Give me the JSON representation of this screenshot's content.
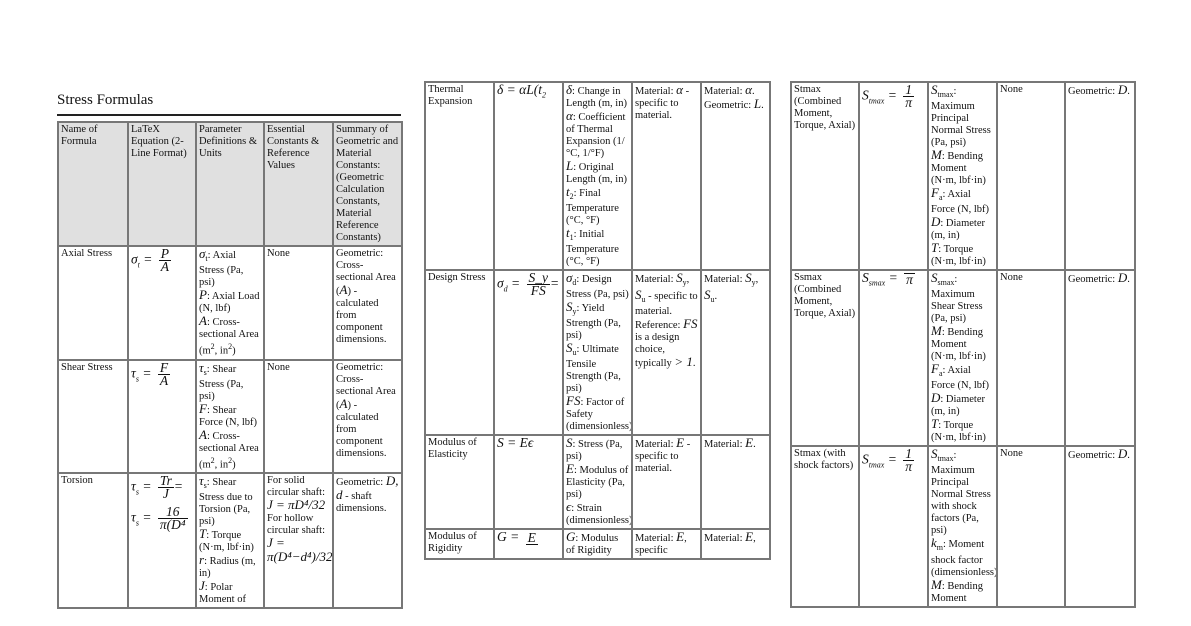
{
  "page": {
    "title": "Stress Formulas"
  },
  "headers": [
    "Name of Formula",
    "LaTeX Equation (2-Line Format)",
    "Parameter Definitions & Units",
    "Essential Constants & Reference Values",
    "Summary of Geometric and Material Constants: (Geometric Calculation Constants, Material Reference Constants)"
  ],
  "tables": [
    {
      "rows": [
        {
          "name": "Axial Stress",
          "eq": [
            {
              "lhs": "σ",
              "sub": "t",
              "num": "P",
              "den": "A",
              "tail": ""
            }
          ],
          "params": [
            [
              {
                "m": "σ",
                "sub": "t"
              },
              {
                "t": ": Axial Stress (Pa, psi)"
              }
            ],
            [
              {
                "m": "P"
              },
              {
                "t": ": Axial Load (N, lbf)"
              }
            ],
            [
              {
                "m": "A"
              },
              {
                "t": ": Cross-sectional Area (m"
              },
              {
                "sup": "2"
              },
              {
                "t": ", in"
              },
              {
                "sup": "2"
              },
              {
                "t": ")"
              }
            ]
          ],
          "constants": [
            [
              {
                "t": "None"
              }
            ]
          ],
          "summary": [
            [
              {
                "t": "Geometric: Cross-sectional Area ("
              },
              {
                "m": "A"
              },
              {
                "t": ") - calculated from component dimensions."
              }
            ]
          ]
        },
        {
          "name": "Shear Stress",
          "eq": [
            {
              "lhs": "τ",
              "sub": "s",
              "num": "F",
              "den": "A",
              "tail": ""
            }
          ],
          "params": [
            [
              {
                "m": "τ",
                "sub": "s"
              },
              {
                "t": ": Shear Stress (Pa, psi)"
              }
            ],
            [
              {
                "m": "F"
              },
              {
                "t": ": Shear Force (N, lbf)"
              }
            ],
            [
              {
                "m": "A"
              },
              {
                "t": ": Cross-sectional Area (m"
              },
              {
                "sup": "2"
              },
              {
                "t": ", in"
              },
              {
                "sup": "2"
              },
              {
                "t": ")"
              }
            ]
          ],
          "constants": [
            [
              {
                "t": "None"
              }
            ]
          ],
          "summary": [
            [
              {
                "t": "Geometric: Cross-sectional Area ("
              },
              {
                "m": "A"
              },
              {
                "t": ") - calculated from component dimensions."
              }
            ]
          ]
        },
        {
          "name": "Torsion",
          "eq": [
            {
              "lhs": "τ",
              "sub": "s",
              "num": "Tr",
              "den": "J",
              "tail": "="
            },
            {
              "lhs": "τ",
              "sub": "s",
              "num": "16",
              "den": "π(D⁴",
              "tail": ""
            }
          ],
          "params": [
            [
              {
                "m": "τ",
                "sub": "s"
              },
              {
                "t": ": Shear Stress due to Torsion (Pa, psi)"
              }
            ],
            [
              {
                "m": "T"
              },
              {
                "t": ": Torque (N·m, lbf·in)"
              }
            ],
            [
              {
                "m": "r"
              },
              {
                "t": ": Radius (m, in)"
              }
            ],
            [
              {
                "m": "J"
              },
              {
                "t": ": Polar Moment of"
              }
            ]
          ],
          "constants": [
            [
              {
                "t": "For solid circular shaft: "
              },
              {
                "m": "J = πD⁴/32"
              }
            ],
            [
              {
                "t": "For hollow circular shaft: "
              },
              {
                "m": "J = π(D⁴−d⁴)/32"
              }
            ]
          ],
          "summary": [
            [
              {
                "t": "Geometric: "
              },
              {
                "m": "D, d"
              },
              {
                "t": " - shaft dimensions."
              }
            ]
          ]
        }
      ]
    },
    {
      "rows": [
        {
          "name": "Thermal Expansion",
          "eq": [
            {
              "lhs": "δ = αL(t",
              "sub": "2",
              "num": "",
              "den": "",
              "tail": ""
            }
          ],
          "params": [
            [
              {
                "m": "δ"
              },
              {
                "t": ": Change in Length (m, in)"
              }
            ],
            [
              {
                "m": "α"
              },
              {
                "t": ": Coefficient of Thermal Expansion (1/°C, 1/°F)"
              }
            ],
            [
              {
                "m": "L"
              },
              {
                "t": ": Original Length (m, in)"
              }
            ],
            [
              {
                "m": "t",
                "sub": "2"
              },
              {
                "t": ": Final Temperature (°C, °F)"
              }
            ],
            [
              {
                "m": "t",
                "sub": "1"
              },
              {
                "t": ": Initial Temperature (°C, °F)"
              }
            ]
          ],
          "constants": [
            [
              {
                "t": "Material: "
              },
              {
                "m": "α"
              },
              {
                "t": " - specific to material."
              }
            ]
          ],
          "summary": [
            [
              {
                "t": "Material: "
              },
              {
                "m": "α"
              },
              {
                "t": ". Geometric: "
              },
              {
                "m": "L"
              },
              {
                "t": "."
              }
            ]
          ]
        },
        {
          "name": "Design Stress",
          "eq": [
            {
              "lhs": "σ",
              "sub": "d",
              "num": "S_y",
              "den": "FS",
              "tail": "="
            }
          ],
          "params": [
            [
              {
                "m": "σ",
                "sub": "d"
              },
              {
                "t": ": Design Stress (Pa, psi)"
              }
            ],
            [
              {
                "m": "S",
                "sub": "y"
              },
              {
                "t": ": Yield Strength (Pa, psi)"
              }
            ],
            [
              {
                "m": "S",
                "sub": "u"
              },
              {
                "t": ": Ultimate Tensile Strength (Pa, psi)"
              }
            ],
            [
              {
                "m": "FS"
              },
              {
                "t": ": Factor of Safety (dimensionless)"
              }
            ]
          ],
          "constants": [
            [
              {
                "t": "Material: "
              },
              {
                "m": "S",
                "sub": "y"
              },
              {
                "t": ", "
              },
              {
                "m": "S",
                "sub": "u"
              },
              {
                "t": " - specific to material. Reference: "
              },
              {
                "m": "FS"
              },
              {
                "t": " is a design choice, typically "
              },
              {
                "m": "> 1"
              },
              {
                "t": "."
              }
            ]
          ],
          "summary": [
            [
              {
                "t": "Material: "
              },
              {
                "m": "S",
                "sub": "y"
              },
              {
                "t": ", "
              },
              {
                "m": "S",
                "sub": "u"
              },
              {
                "t": "."
              }
            ]
          ]
        },
        {
          "name": "Modulus of Elasticity",
          "eq": [
            {
              "lhs": "S = Eϵ",
              "sub": "",
              "num": "",
              "den": "",
              "tail": ""
            }
          ],
          "params": [
            [
              {
                "m": "S"
              },
              {
                "t": ": Stress (Pa, psi)"
              }
            ],
            [
              {
                "m": "E"
              },
              {
                "t": ": Modulus of Elasticity (Pa, psi)"
              }
            ],
            [
              {
                "m": "ϵ"
              },
              {
                "t": ": Strain (dimensionless)"
              }
            ]
          ],
          "constants": [
            [
              {
                "t": "Material: "
              },
              {
                "m": "E"
              },
              {
                "t": " - specific to material."
              }
            ]
          ],
          "summary": [
            [
              {
                "t": "Material: "
              },
              {
                "m": "E"
              },
              {
                "t": "."
              }
            ]
          ]
        },
        {
          "name": "Modulus of Rigidity",
          "eq": [
            {
              "lhs": "G",
              "sub": "",
              "num": "E",
              "den": "",
              "tail": ""
            }
          ],
          "params": [
            [
              {
                "m": "G"
              },
              {
                "t": ": Modulus of Rigidity"
              }
            ]
          ],
          "constants": [
            [
              {
                "t": "Material: "
              },
              {
                "m": "E"
              },
              {
                "t": ", specific"
              }
            ]
          ],
          "summary": [
            [
              {
                "t": "Material: "
              },
              {
                "m": "E"
              },
              {
                "t": ","
              }
            ]
          ]
        }
      ]
    },
    {
      "rows": [
        {
          "name": "Stmax (Combined Moment, Torque, Axial)",
          "eq": [
            {
              "lhs": "S",
              "sub": "tmax",
              "num": "1",
              "den": "π",
              "tail": ""
            }
          ],
          "params": [
            [
              {
                "m": "S",
                "sub": "tmax"
              },
              {
                "t": ": Maximum Principal Normal Stress (Pa, psi)"
              }
            ],
            [
              {
                "m": "M"
              },
              {
                "t": ": Bending Moment (N·m, lbf·in)"
              }
            ],
            [
              {
                "m": "F",
                "sub": "a"
              },
              {
                "t": ": Axial Force (N, lbf)"
              }
            ],
            [
              {
                "m": "D"
              },
              {
                "t": ": Diameter (m, in)"
              }
            ],
            [
              {
                "m": "T"
              },
              {
                "t": ": Torque (N·m, lbf·in)"
              }
            ]
          ],
          "constants": [
            [
              {
                "t": "None"
              }
            ]
          ],
          "summary": [
            [
              {
                "t": "Geometric: "
              },
              {
                "m": "D"
              },
              {
                "t": "."
              }
            ]
          ]
        },
        {
          "name": "Ssmax (Combined Moment, Torque, Axial)",
          "eq": [
            {
              "lhs": "S",
              "sub": "smax",
              "num": "",
              "den": "π",
              "tail": ""
            }
          ],
          "params": [
            [
              {
                "m": "S",
                "sub": "smax"
              },
              {
                "t": ": Maximum Shear Stress (Pa, psi)"
              }
            ],
            [
              {
                "m": "M"
              },
              {
                "t": ": Bending Moment (N·m, lbf·in)"
              }
            ],
            [
              {
                "m": "F",
                "sub": "a"
              },
              {
                "t": ": Axial Force (N, lbf)"
              }
            ],
            [
              {
                "m": "D"
              },
              {
                "t": ": Diameter (m, in)"
              }
            ],
            [
              {
                "m": "T"
              },
              {
                "t": ": Torque (N·m, lbf·in)"
              }
            ]
          ],
          "constants": [
            [
              {
                "t": "None"
              }
            ]
          ],
          "summary": [
            [
              {
                "t": "Geometric: "
              },
              {
                "m": "D"
              },
              {
                "t": "."
              }
            ]
          ]
        },
        {
          "name": "Stmax (with shock factors)",
          "eq": [
            {
              "lhs": "S",
              "sub": "tmax",
              "num": "1",
              "den": "π",
              "tail": ""
            }
          ],
          "params": [
            [
              {
                "m": "S",
                "sub": "tmax"
              },
              {
                "t": ": Maximum Principal Normal Stress with shock factors (Pa, psi)"
              }
            ],
            [
              {
                "m": "k",
                "sub": "m"
              },
              {
                "t": ": Moment shock factor (dimensionless)"
              }
            ],
            [
              {
                "m": "M"
              },
              {
                "t": ": Bending Moment"
              }
            ]
          ],
          "constants": [
            [
              {
                "t": "None"
              }
            ]
          ],
          "summary": [
            [
              {
                "t": "Geometric: "
              },
              {
                "m": "D"
              },
              {
                "t": "."
              }
            ]
          ]
        }
      ]
    }
  ]
}
